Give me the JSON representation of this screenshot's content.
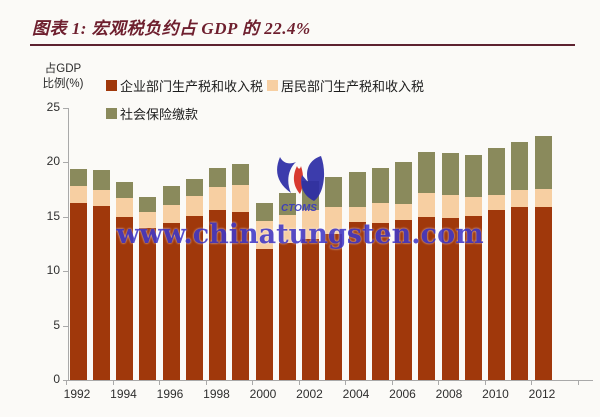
{
  "header": {
    "title": "图表 1: 宏观税负约占 GDP 的 22.4%"
  },
  "y_axis_title": {
    "line1": "占GDP",
    "line2": "比例(%)"
  },
  "legend": {
    "items": [
      {
        "label": "企业部门生产税和收入税",
        "color": "#a0380b"
      },
      {
        "label": "居民部门生产税和收入税",
        "color": "#f7cfa2"
      },
      {
        "label": "社会保险缴款",
        "color": "#8a8a5c"
      }
    ]
  },
  "watermark": {
    "url_text": "www.chinatungsten.com",
    "logo_text": "CTOMS",
    "text_color": "#4038c8"
  },
  "chart_data": {
    "type": "bar",
    "stacked": true,
    "title": "宏观税负约占 GDP 的 22.4%",
    "ylabel": "占GDP比例(%)",
    "xlabel": "",
    "ylim": [
      0,
      25
    ],
    "y_ticks": [
      0,
      5,
      10,
      15,
      20,
      25
    ],
    "grid": false,
    "legend_position": "top-left",
    "categories": [
      1992,
      1993,
      1994,
      1995,
      1996,
      1997,
      1998,
      1999,
      2000,
      2001,
      2002,
      2003,
      2004,
      2005,
      2006,
      2007,
      2008,
      2009,
      2010,
      2011,
      2012
    ],
    "x_tick_labels": [
      "1992",
      "1994",
      "1996",
      "1998",
      "2000",
      "2002",
      "2004",
      "2006",
      "2008",
      "2010",
      "2012"
    ],
    "series": [
      {
        "name": "企业部门生产税和收入税",
        "color": "#a0380b",
        "values": [
          16.3,
          16.0,
          15.0,
          14.0,
          14.4,
          15.1,
          15.6,
          15.4,
          12.0,
          12.6,
          13.0,
          13.4,
          14.5,
          14.4,
          14.7,
          15.0,
          14.9,
          15.1,
          15.6,
          15.9,
          15.9
        ]
      },
      {
        "name": "居民部门生产税和收入税",
        "color": "#f7cfa2",
        "values": [
          1.5,
          1.5,
          1.7,
          1.4,
          1.7,
          1.8,
          2.1,
          2.5,
          2.6,
          2.6,
          2.6,
          2.5,
          1.4,
          1.9,
          1.5,
          2.2,
          2.1,
          1.7,
          1.4,
          1.6,
          1.7
        ]
      },
      {
        "name": "社会保险缴款",
        "color": "#8a8a5c",
        "values": [
          1.6,
          1.8,
          1.5,
          1.4,
          1.7,
          1.6,
          1.8,
          2.0,
          1.7,
          2.0,
          2.7,
          2.8,
          3.2,
          3.2,
          3.8,
          3.8,
          3.9,
          3.9,
          4.3,
          4.4,
          4.8
        ]
      }
    ],
    "stacked_totals": [
      19.4,
      19.3,
      18.2,
      16.8,
      17.8,
      18.5,
      19.5,
      19.9,
      16.3,
      17.2,
      18.3,
      18.7,
      19.1,
      19.5,
      20.0,
      21.0,
      20.9,
      20.7,
      21.3,
      21.9,
      22.4
    ]
  }
}
